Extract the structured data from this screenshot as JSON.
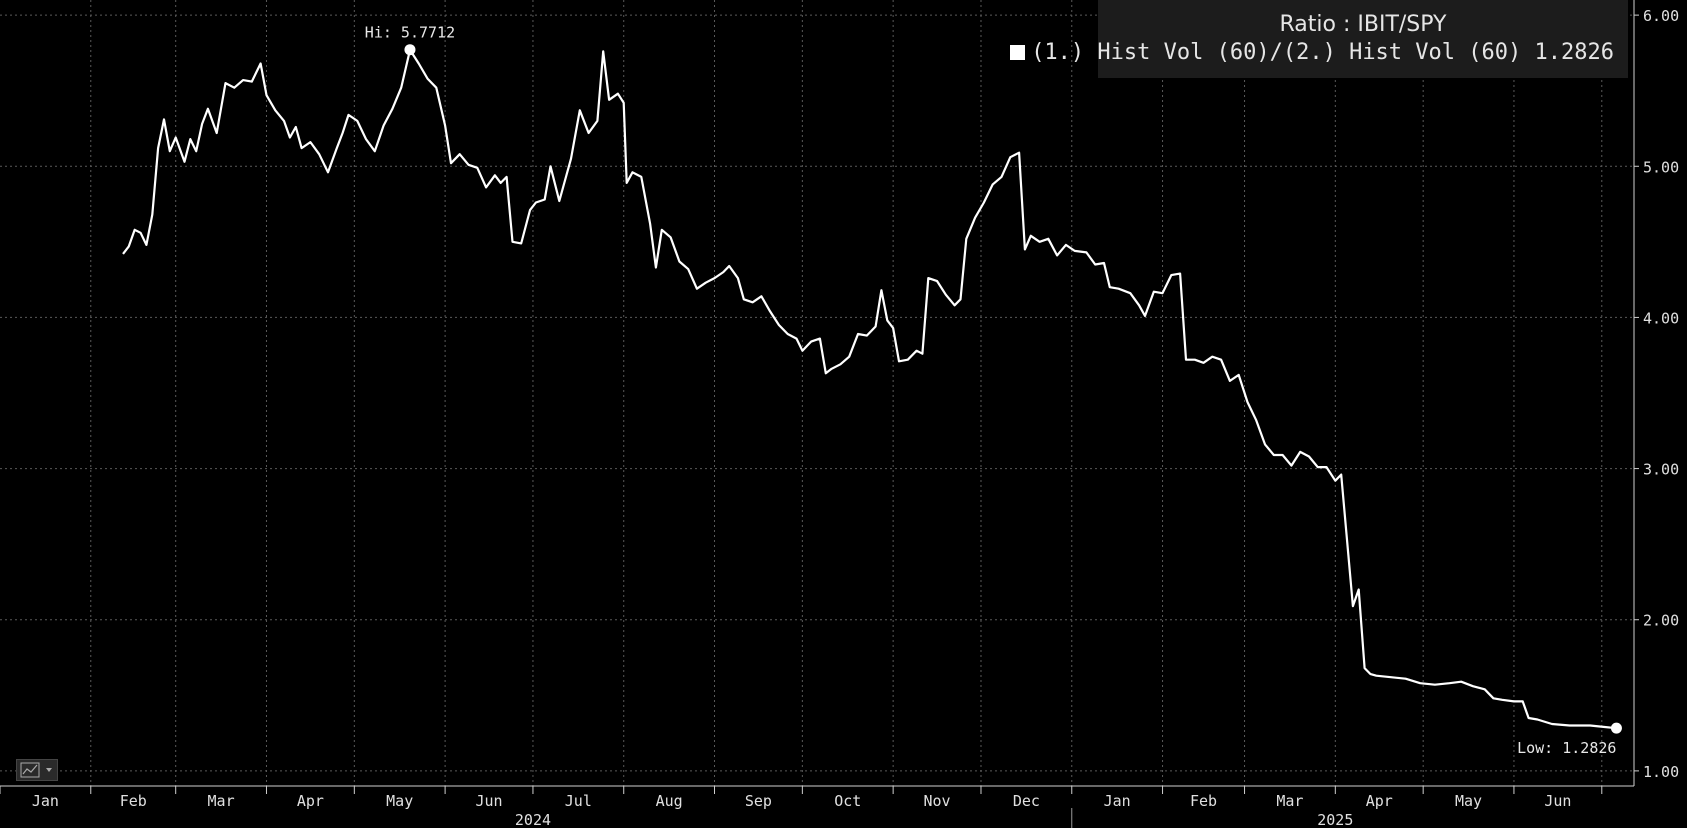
{
  "chart_data": {
    "type": "line",
    "title": "Ratio : IBIT/SPY",
    "legend": {
      "placement": "top-right",
      "entries": [
        {
          "label": "(1.) Hist Vol (60)/(2.) Hist Vol (60)",
          "value": "1.2826",
          "color": "#ffffff"
        }
      ]
    },
    "y_axis": {
      "side": "right",
      "ylim": [
        0.9,
        6.1
      ],
      "ticks": [
        1,
        2,
        3,
        4,
        5,
        6
      ],
      "tick_labels": [
        "1.00",
        "2.00",
        "3.00",
        "4.00",
        "5.00",
        "6.00"
      ]
    },
    "x_axis": {
      "range": [
        "2024-01-01",
        "2025-07-12"
      ],
      "months": [
        {
          "label": "Jan",
          "date": "2024-01-01"
        },
        {
          "label": "Feb",
          "date": "2024-02-01"
        },
        {
          "label": "Mar",
          "date": "2024-03-01"
        },
        {
          "label": "Apr",
          "date": "2024-04-01"
        },
        {
          "label": "May",
          "date": "2024-05-01"
        },
        {
          "label": "Jun",
          "date": "2024-06-01"
        },
        {
          "label": "Jul",
          "date": "2024-07-01"
        },
        {
          "label": "Aug",
          "date": "2024-08-01"
        },
        {
          "label": "Sep",
          "date": "2024-09-01"
        },
        {
          "label": "Oct",
          "date": "2024-10-01"
        },
        {
          "label": "Nov",
          "date": "2024-11-01"
        },
        {
          "label": "Dec",
          "date": "2024-12-01"
        },
        {
          "label": "Jan",
          "date": "2025-01-01"
        },
        {
          "label": "Feb",
          "date": "2025-02-01"
        },
        {
          "label": "Mar",
          "date": "2025-03-01"
        },
        {
          "label": "Apr",
          "date": "2025-04-01"
        },
        {
          "label": "May",
          "date": "2025-05-01"
        },
        {
          "label": "Jun",
          "date": "2025-06-01"
        },
        {
          "label": "",
          "date": "2025-07-01"
        }
      ],
      "years": [
        {
          "label": "2024",
          "date": "2024-07-01"
        },
        {
          "label": "2025",
          "date": "2025-04-01"
        }
      ],
      "year_divider": "2025-01-01"
    },
    "grid": true,
    "series": [
      {
        "name": "(1.) Hist Vol (60)/(2.) Hist Vol (60)",
        "color": "#ffffff",
        "points": [
          [
            "2024-02-12",
            4.42
          ],
          [
            "2024-02-14",
            4.47
          ],
          [
            "2024-02-16",
            4.58
          ],
          [
            "2024-02-18",
            4.56
          ],
          [
            "2024-02-20",
            4.48
          ],
          [
            "2024-02-22",
            4.68
          ],
          [
            "2024-02-24",
            5.12
          ],
          [
            "2024-02-26",
            5.31
          ],
          [
            "2024-02-28",
            5.1
          ],
          [
            "2024-03-01",
            5.19
          ],
          [
            "2024-03-04",
            5.03
          ],
          [
            "2024-03-06",
            5.18
          ],
          [
            "2024-03-08",
            5.1
          ],
          [
            "2024-03-10",
            5.28
          ],
          [
            "2024-03-12",
            5.38
          ],
          [
            "2024-03-15",
            5.22
          ],
          [
            "2024-03-18",
            5.55
          ],
          [
            "2024-03-21",
            5.52
          ],
          [
            "2024-03-24",
            5.57
          ],
          [
            "2024-03-27",
            5.56
          ],
          [
            "2024-03-30",
            5.68
          ],
          [
            "2024-04-01",
            5.47
          ],
          [
            "2024-04-04",
            5.37
          ],
          [
            "2024-04-07",
            5.3
          ],
          [
            "2024-04-09",
            5.19
          ],
          [
            "2024-04-11",
            5.26
          ],
          [
            "2024-04-13",
            5.12
          ],
          [
            "2024-04-16",
            5.16
          ],
          [
            "2024-04-19",
            5.08
          ],
          [
            "2024-04-22",
            4.96
          ],
          [
            "2024-04-25",
            5.12
          ],
          [
            "2024-04-27",
            5.22
          ],
          [
            "2024-04-29",
            5.34
          ],
          [
            "2024-05-02",
            5.3
          ],
          [
            "2024-05-05",
            5.18
          ],
          [
            "2024-05-08",
            5.1
          ],
          [
            "2024-05-11",
            5.27
          ],
          [
            "2024-05-14",
            5.38
          ],
          [
            "2024-05-17",
            5.52
          ],
          [
            "2024-05-20",
            5.77
          ],
          [
            "2024-05-23",
            5.68
          ],
          [
            "2024-05-26",
            5.58
          ],
          [
            "2024-05-29",
            5.52
          ],
          [
            "2024-06-01",
            5.27
          ],
          [
            "2024-06-03",
            5.02
          ],
          [
            "2024-06-06",
            5.08
          ],
          [
            "2024-06-09",
            5.01
          ],
          [
            "2024-06-12",
            4.99
          ],
          [
            "2024-06-15",
            4.86
          ],
          [
            "2024-06-18",
            4.94
          ],
          [
            "2024-06-20",
            4.89
          ],
          [
            "2024-06-22",
            4.93
          ],
          [
            "2024-06-24",
            4.5
          ],
          [
            "2024-06-27",
            4.49
          ],
          [
            "2024-06-30",
            4.71
          ],
          [
            "2024-07-02",
            4.76
          ],
          [
            "2024-07-05",
            4.78
          ],
          [
            "2024-07-07",
            5.0
          ],
          [
            "2024-07-10",
            4.77
          ],
          [
            "2024-07-14",
            5.05
          ],
          [
            "2024-07-17",
            5.37
          ],
          [
            "2024-07-20",
            5.22
          ],
          [
            "2024-07-23",
            5.3
          ],
          [
            "2024-07-25",
            5.76
          ],
          [
            "2024-07-27",
            5.44
          ],
          [
            "2024-07-30",
            5.48
          ],
          [
            "2024-08-01",
            5.42
          ],
          [
            "2024-08-02",
            4.89
          ],
          [
            "2024-08-04",
            4.96
          ],
          [
            "2024-08-07",
            4.93
          ],
          [
            "2024-08-10",
            4.62
          ],
          [
            "2024-08-12",
            4.33
          ],
          [
            "2024-08-14",
            4.58
          ],
          [
            "2024-08-17",
            4.53
          ],
          [
            "2024-08-20",
            4.37
          ],
          [
            "2024-08-23",
            4.32
          ],
          [
            "2024-08-26",
            4.19
          ],
          [
            "2024-08-29",
            4.23
          ],
          [
            "2024-09-01",
            4.26
          ],
          [
            "2024-09-04",
            4.3
          ],
          [
            "2024-09-06",
            4.34
          ],
          [
            "2024-09-09",
            4.26
          ],
          [
            "2024-09-11",
            4.12
          ],
          [
            "2024-09-14",
            4.1
          ],
          [
            "2024-09-17",
            4.14
          ],
          [
            "2024-09-20",
            4.04
          ],
          [
            "2024-09-23",
            3.95
          ],
          [
            "2024-09-26",
            3.89
          ],
          [
            "2024-09-29",
            3.86
          ],
          [
            "2024-10-01",
            3.78
          ],
          [
            "2024-10-04",
            3.84
          ],
          [
            "2024-10-07",
            3.86
          ],
          [
            "2024-10-09",
            3.63
          ],
          [
            "2024-10-11",
            3.66
          ],
          [
            "2024-10-14",
            3.69
          ],
          [
            "2024-10-17",
            3.74
          ],
          [
            "2024-10-20",
            3.89
          ],
          [
            "2024-10-23",
            3.88
          ],
          [
            "2024-10-26",
            3.94
          ],
          [
            "2024-10-28",
            4.18
          ],
          [
            "2024-10-30",
            3.98
          ],
          [
            "2024-11-01",
            3.93
          ],
          [
            "2024-11-03",
            3.71
          ],
          [
            "2024-11-06",
            3.72
          ],
          [
            "2024-11-09",
            3.78
          ],
          [
            "2024-11-11",
            3.76
          ],
          [
            "2024-11-13",
            4.26
          ],
          [
            "2024-11-16",
            4.24
          ],
          [
            "2024-11-19",
            4.15
          ],
          [
            "2024-11-22",
            4.08
          ],
          [
            "2024-11-24",
            4.12
          ],
          [
            "2024-11-26",
            4.52
          ],
          [
            "2024-11-29",
            4.66
          ],
          [
            "2024-12-02",
            4.76
          ],
          [
            "2024-12-05",
            4.88
          ],
          [
            "2024-12-08",
            4.93
          ],
          [
            "2024-12-11",
            5.06
          ],
          [
            "2024-12-14",
            5.09
          ],
          [
            "2024-12-16",
            4.45
          ],
          [
            "2024-12-18",
            4.54
          ],
          [
            "2024-12-21",
            4.5
          ],
          [
            "2024-12-24",
            4.52
          ],
          [
            "2024-12-27",
            4.41
          ],
          [
            "2024-12-30",
            4.48
          ],
          [
            "2025-01-02",
            4.44
          ],
          [
            "2025-01-06",
            4.43
          ],
          [
            "2025-01-09",
            4.35
          ],
          [
            "2025-01-12",
            4.36
          ],
          [
            "2025-01-14",
            4.2
          ],
          [
            "2025-01-17",
            4.19
          ],
          [
            "2025-01-21",
            4.16
          ],
          [
            "2025-01-24",
            4.08
          ],
          [
            "2025-01-26",
            4.01
          ],
          [
            "2025-01-29",
            4.17
          ],
          [
            "2025-02-01",
            4.16
          ],
          [
            "2025-02-04",
            4.28
          ],
          [
            "2025-02-07",
            4.29
          ],
          [
            "2025-02-09",
            3.72
          ],
          [
            "2025-02-12",
            3.72
          ],
          [
            "2025-02-15",
            3.7
          ],
          [
            "2025-02-18",
            3.74
          ],
          [
            "2025-02-21",
            3.72
          ],
          [
            "2025-02-24",
            3.58
          ],
          [
            "2025-02-27",
            3.62
          ],
          [
            "2025-03-02",
            3.44
          ],
          [
            "2025-03-05",
            3.32
          ],
          [
            "2025-03-08",
            3.16
          ],
          [
            "2025-03-11",
            3.09
          ],
          [
            "2025-03-14",
            3.09
          ],
          [
            "2025-03-17",
            3.02
          ],
          [
            "2025-03-20",
            3.11
          ],
          [
            "2025-03-23",
            3.08
          ],
          [
            "2025-03-26",
            3.01
          ],
          [
            "2025-03-29",
            3.01
          ],
          [
            "2025-04-01",
            2.92
          ],
          [
            "2025-04-03",
            2.96
          ],
          [
            "2025-04-07",
            2.09
          ],
          [
            "2025-04-09",
            2.2
          ],
          [
            "2025-04-11",
            1.68
          ],
          [
            "2025-04-13",
            1.64
          ],
          [
            "2025-04-15",
            1.63
          ],
          [
            "2025-04-20",
            1.62
          ],
          [
            "2025-04-25",
            1.61
          ],
          [
            "2025-04-30",
            1.58
          ],
          [
            "2025-05-05",
            1.57
          ],
          [
            "2025-05-10",
            1.58
          ],
          [
            "2025-05-14",
            1.59
          ],
          [
            "2025-05-18",
            1.56
          ],
          [
            "2025-05-22",
            1.54
          ],
          [
            "2025-05-25",
            1.48
          ],
          [
            "2025-05-28",
            1.47
          ],
          [
            "2025-06-01",
            1.46
          ],
          [
            "2025-06-04",
            1.46
          ],
          [
            "2025-06-06",
            1.35
          ],
          [
            "2025-06-09",
            1.34
          ],
          [
            "2025-06-14",
            1.31
          ],
          [
            "2025-06-20",
            1.3
          ],
          [
            "2025-06-27",
            1.3
          ],
          [
            "2025-07-02",
            1.29
          ],
          [
            "2025-07-06",
            1.2826
          ]
        ]
      }
    ],
    "annotations": [
      {
        "label": "Hi: 5.7712",
        "date": "2024-05-20",
        "value": 5.7712
      },
      {
        "label": "Low: 1.2826",
        "date": "2025-07-06",
        "value": 1.2826
      }
    ]
  }
}
